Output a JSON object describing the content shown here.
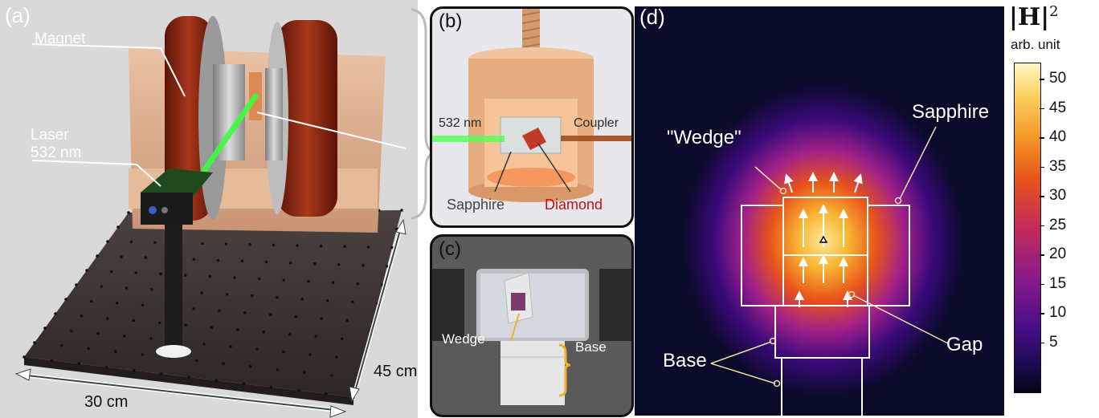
{
  "panel_a": {
    "tag": "(a)",
    "magnet": "Magnet",
    "laser_line1": "Laser",
    "laser_line2": "532 nm",
    "dim_width": "30 cm",
    "dim_depth": "45 cm"
  },
  "panel_b": {
    "tag": "(b)",
    "wavelength": "532 nm",
    "coupler": "Coupler",
    "sapphire": "Sapphire",
    "diamond": "Diamond"
  },
  "panel_c": {
    "tag": "(c)",
    "wedge": "Wedge",
    "base": "Base"
  },
  "panel_d": {
    "tag": "(d)",
    "wedge": "\"Wedge\"",
    "sapphire": "Sapphire",
    "gap": "Gap",
    "base": "Base"
  },
  "colorbar": {
    "title_symbol": "|H|",
    "title_exp": "2",
    "unit": "arb. unit",
    "ticks": [
      "50",
      "45",
      "40",
      "35",
      "30",
      "25",
      "20",
      "15",
      "10",
      "5"
    ]
  },
  "colors": {
    "field_bg": "#0a0a2a",
    "magnet_coil": "#8a2210",
    "laser": "#3cff3c",
    "diamond_text": "#c0101a",
    "copper": "#e2a67a"
  }
}
